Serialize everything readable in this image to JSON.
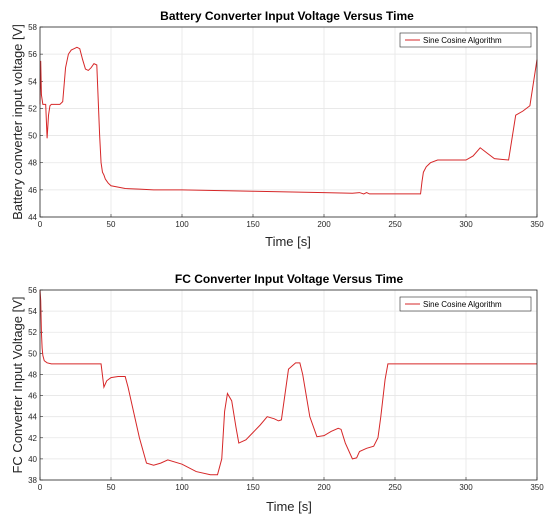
{
  "colors": {
    "line": "#d62728",
    "grid": "#e6e6e6",
    "axis": "#262626",
    "background": "#ffffff"
  },
  "chart_data": [
    {
      "type": "line",
      "title": "Battery Converter Input Voltage Versus Time",
      "xlabel": "Time [s]",
      "ylabel": "Battery converter input voltage [V]",
      "xlim": [
        0,
        350
      ],
      "ylim": [
        44,
        58
      ],
      "xticks": [
        "0",
        "50",
        "100",
        "150",
        "200",
        "250",
        "300",
        "350"
      ],
      "yticks": [
        "44",
        "46",
        "48",
        "50",
        "52",
        "54",
        "56",
        "58"
      ],
      "grid": true,
      "legend": "top-right",
      "series": [
        {
          "name": "Sine Cosine Algorithm",
          "x": [
            0,
            0.5,
            1,
            2,
            3,
            4,
            5,
            6,
            7,
            8,
            10,
            12,
            14,
            16,
            18,
            20,
            22,
            24,
            26,
            28,
            30,
            32,
            34,
            36,
            38,
            40,
            42,
            43,
            44,
            45,
            46,
            48,
            50,
            55,
            60,
            70,
            80,
            100,
            150,
            200,
            220,
            225,
            228,
            230,
            232,
            250,
            268,
            269,
            270,
            272,
            275,
            280,
            290,
            300,
            305,
            310,
            315,
            320,
            325,
            330,
            335,
            340,
            345,
            350
          ],
          "y": [
            52.3,
            55.5,
            53.0,
            52.3,
            52.3,
            52.3,
            49.8,
            51.5,
            52.2,
            52.3,
            52.3,
            52.3,
            52.3,
            52.5,
            55.0,
            56.0,
            56.3,
            56.4,
            56.5,
            56.4,
            55.6,
            54.9,
            54.8,
            55.0,
            55.3,
            55.2,
            50.0,
            48.0,
            47.3,
            47.1,
            46.8,
            46.5,
            46.3,
            46.2,
            46.1,
            46.05,
            46.0,
            46.0,
            45.9,
            45.8,
            45.75,
            45.8,
            45.7,
            45.8,
            45.7,
            45.7,
            45.7,
            46.6,
            47.3,
            47.7,
            48.0,
            48.2,
            48.2,
            48.2,
            48.5,
            49.1,
            48.7,
            48.3,
            48.25,
            48.2,
            51.5,
            51.8,
            52.2,
            55.6
          ]
        }
      ]
    },
    {
      "type": "line",
      "title": "FC Converter Input Voltage Versus Time",
      "xlabel": "Time [s]",
      "ylabel": "FC Converter Input Voltage [V]",
      "xlim": [
        0,
        350
      ],
      "ylim": [
        38,
        56
      ],
      "xticks": [
        "0",
        "50",
        "100",
        "150",
        "200",
        "250",
        "300",
        "350"
      ],
      "yticks": [
        "38",
        "40",
        "42",
        "44",
        "46",
        "48",
        "50",
        "52",
        "54",
        "56"
      ],
      "grid": true,
      "legend": "top-right",
      "series": [
        {
          "name": "Sine Cosine Algorithm",
          "x": [
            0,
            0.5,
            1,
            1.5,
            2,
            3,
            5,
            8,
            10,
            15,
            20,
            30,
            40,
            43,
            45,
            47,
            50,
            55,
            60,
            62,
            65,
            70,
            75,
            80,
            85,
            90,
            100,
            110,
            120,
            125,
            128,
            130,
            132,
            135,
            138,
            140,
            145,
            150,
            155,
            160,
            165,
            168,
            170,
            175,
            180,
            183,
            185,
            190,
            195,
            200,
            205,
            210,
            212,
            215,
            220,
            223,
            225,
            230,
            235,
            238,
            240,
            243,
            245,
            250,
            300,
            350
          ],
          "y": [
            56.0,
            55.0,
            52.0,
            50.5,
            49.8,
            49.3,
            49.1,
            49.0,
            49.0,
            49.0,
            49.0,
            49.0,
            49.0,
            49.0,
            46.8,
            47.4,
            47.7,
            47.8,
            47.8,
            46.8,
            45.0,
            42.0,
            39.6,
            39.4,
            39.6,
            39.9,
            39.5,
            38.8,
            38.5,
            38.5,
            40.0,
            44.5,
            46.2,
            45.5,
            43.0,
            41.5,
            41.8,
            42.5,
            43.2,
            44.0,
            43.8,
            43.6,
            43.7,
            48.5,
            49.1,
            49.1,
            48.0,
            44.0,
            42.1,
            42.2,
            42.6,
            42.9,
            42.8,
            41.5,
            40.0,
            40.1,
            40.7,
            41.0,
            41.2,
            42.0,
            44.0,
            47.5,
            49.0,
            49.0,
            49.0,
            49.0
          ]
        }
      ]
    }
  ]
}
